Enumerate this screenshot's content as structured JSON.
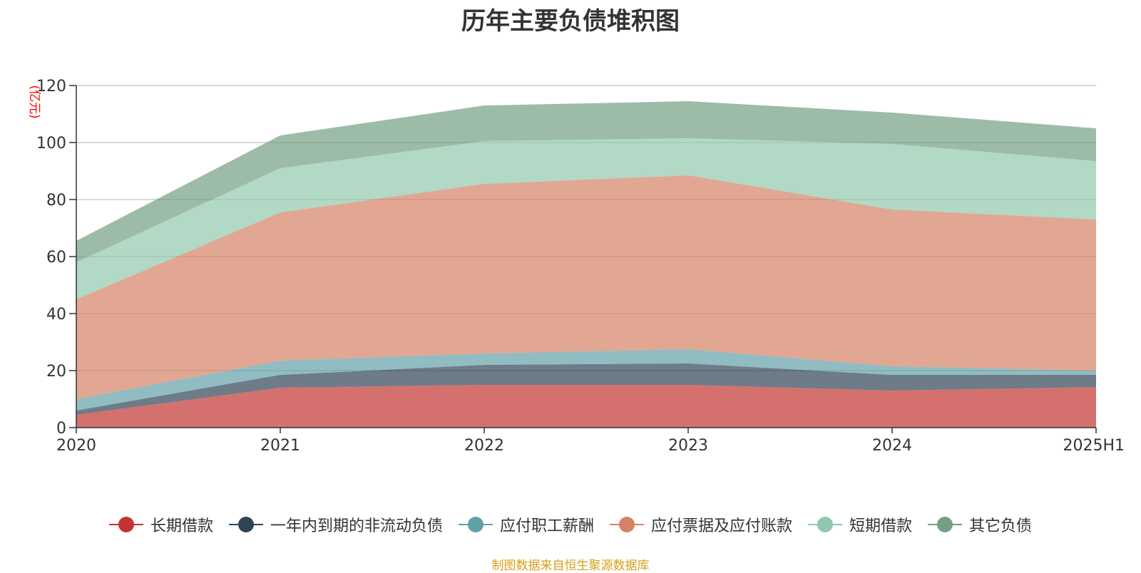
{
  "title": "历年主要负债堆积图",
  "source_note": "制图数据来自恒生聚源数据库",
  "colors": {
    "长期借款": "#c23531",
    "一年内到期的非流动负债": "#2f4554",
    "应付职工薪酬": "#61a0a8",
    "应付票据及应付账款": "#d48265",
    "短期借款": "#91c7ae",
    "其它负债": "#749f83"
  },
  "chart_data": {
    "type": "area",
    "stacked": true,
    "title": "历年主要负债堆积图",
    "ylabel": "(亿元)",
    "xlabel": "",
    "ylim": [
      0,
      120
    ],
    "yticks": [
      0,
      20,
      40,
      60,
      80,
      100,
      120
    ],
    "grid": true,
    "legend_position": "bottom",
    "categories": [
      "2020",
      "2021",
      "2022",
      "2023",
      "2024",
      "2025H1"
    ],
    "series": [
      {
        "name": "长期借款",
        "values": [
          4.5,
          14,
          15,
          15,
          13,
          14.2
        ]
      },
      {
        "name": "一年内到期的非流动负债",
        "values": [
          1.5,
          4.5,
          7,
          7.5,
          5.5,
          4.3
        ]
      },
      {
        "name": "应付职工薪酬",
        "values": [
          4,
          5,
          4,
          5,
          3,
          1.5
        ]
      },
      {
        "name": "应付票据及应付账款",
        "values": [
          35,
          52,
          59.5,
          61,
          55,
          53
        ]
      },
      {
        "name": "短期借款",
        "values": [
          13,
          15.5,
          15,
          13,
          23,
          20.5
        ]
      },
      {
        "name": "其它负债",
        "values": [
          7.5,
          11.5,
          12.5,
          13,
          11,
          11.5
        ]
      }
    ]
  }
}
